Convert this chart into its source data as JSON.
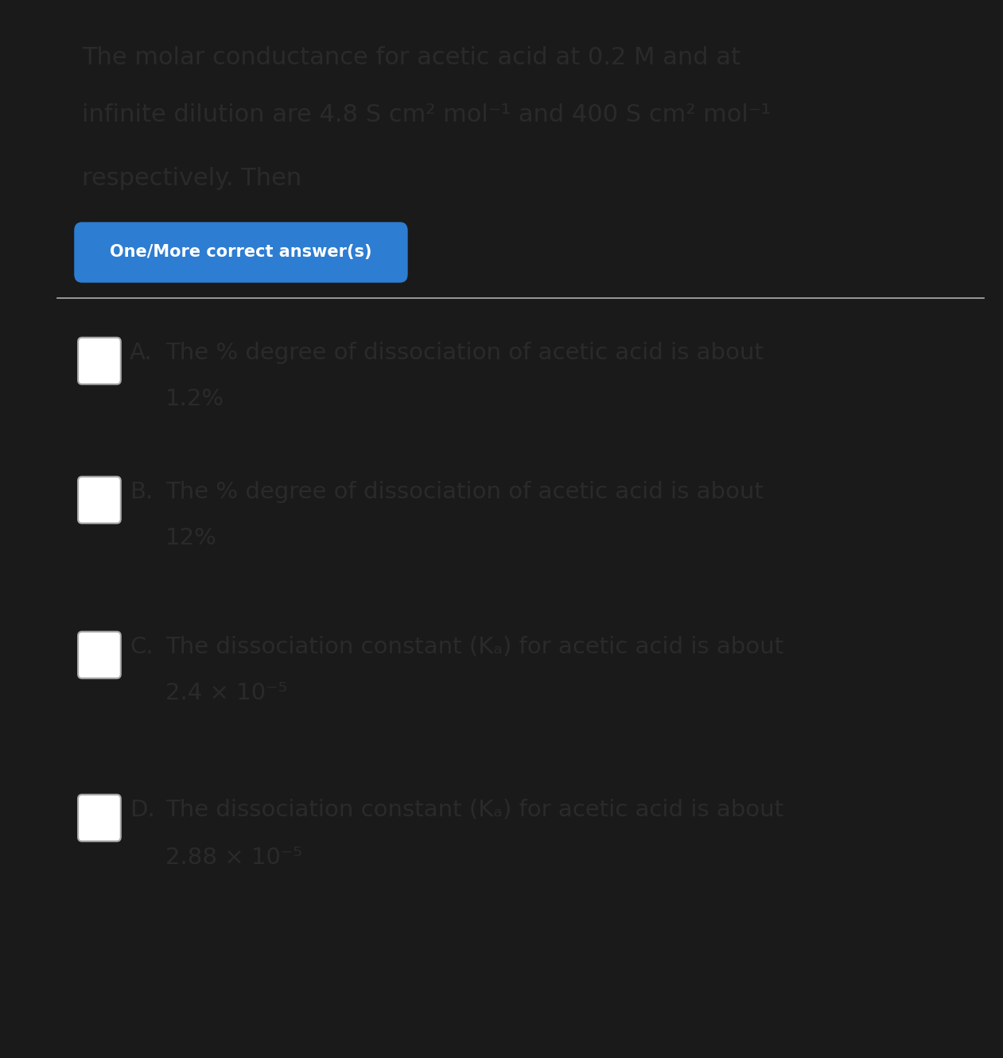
{
  "bg_color_left": "#1a1a1a",
  "bg_color_card": "#e8e8e8",
  "card_color": "#e8e8e8",
  "question_line1": "The molar conductance for acetic acid at 0.2 M and at",
  "question_line2": "infinite dilution are 4.8 S cm² mol⁻¹ and 400 S cm² mol⁻¹",
  "question_line3": "respectively. Then",
  "badge_text": "One/More correct answer(s)",
  "badge_bg": "#2d7dd2",
  "badge_text_color": "#ffffff",
  "separator_color": "#b0b0b0",
  "text_color": "#2a2a2a",
  "checkbox_edge_color": "#aaaaaa",
  "options": [
    {
      "label": "A.",
      "line1": "The % degree of dissociation of acetic acid is about",
      "line2": "1.2%"
    },
    {
      "label": "B.",
      "line1": "The % degree of dissociation of acetic acid is about",
      "line2": "12%"
    },
    {
      "label": "C.",
      "line1": "The dissociation constant (Kₐ) for acetic acid is about",
      "line2": "2.4 × 10⁻⁵"
    },
    {
      "label": "D.",
      "line1": "The dissociation constant (Kₐ) for acetic acid is about",
      "line2": "2.88 × 10⁻⁵"
    }
  ],
  "q_fontsize": 22,
  "badge_fontsize": 15,
  "opt_fontsize": 21,
  "opt_label_fontsize": 21
}
